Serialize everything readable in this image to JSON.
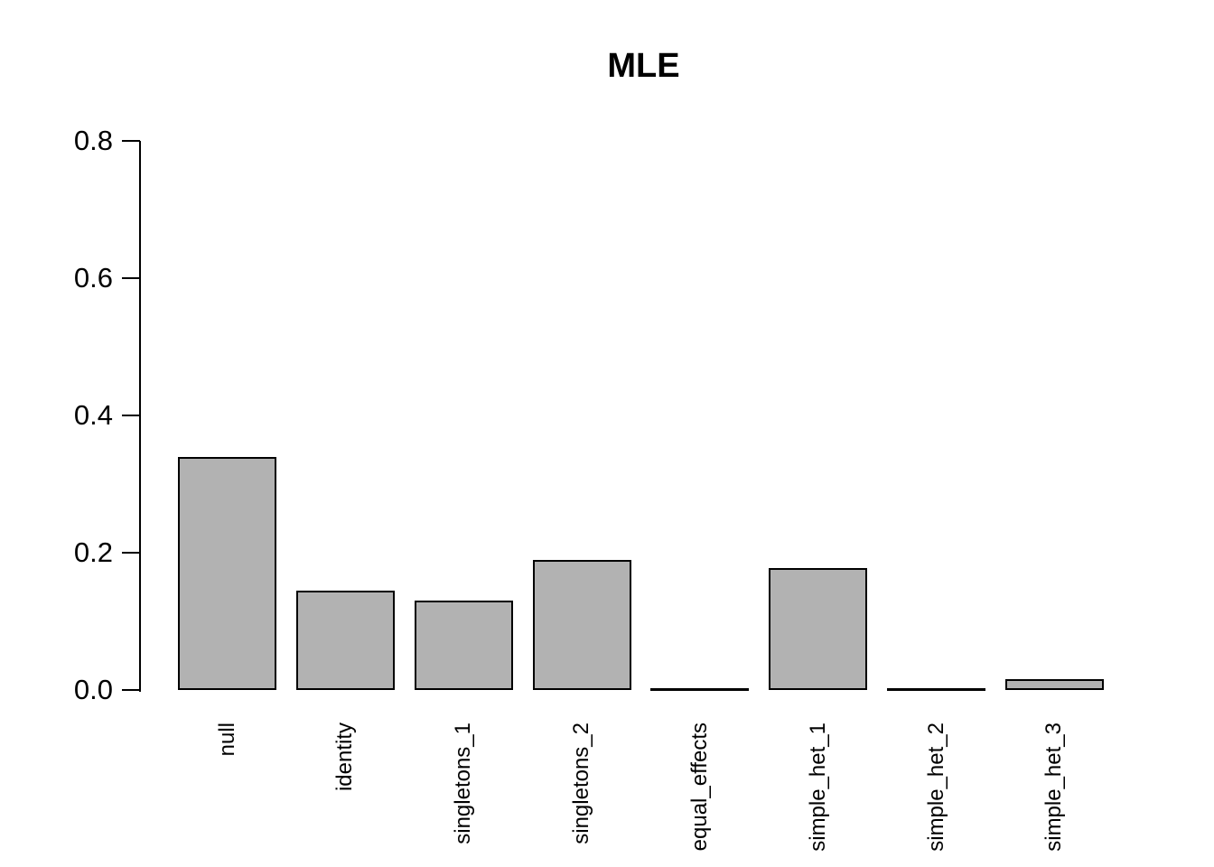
{
  "chart_data": {
    "type": "bar",
    "title": "MLE",
    "categories": [
      "null",
      "identity",
      "singletons_1",
      "singletons_2",
      "equal_effects",
      "simple_het_1",
      "simple_het_2",
      "simple_het_3"
    ],
    "values": [
      0.34,
      0.145,
      0.13,
      0.19,
      0,
      0.178,
      0,
      0.016
    ],
    "xlabel": "",
    "ylabel": "",
    "ylim": [
      0,
      0.8
    ],
    "yticks": [
      0.0,
      0.2,
      0.4,
      0.6,
      0.8
    ],
    "ytick_labels": [
      "0.0",
      "0.2",
      "0.4",
      "0.6",
      "0.8"
    ],
    "grid": false,
    "legend": "none",
    "x_label_rotation_deg": 90,
    "bar_fill": "#b2b2b2",
    "bar_border": "#000000",
    "axis_color": "#000000",
    "text_color": "#000000",
    "background": "#ffffff"
  }
}
